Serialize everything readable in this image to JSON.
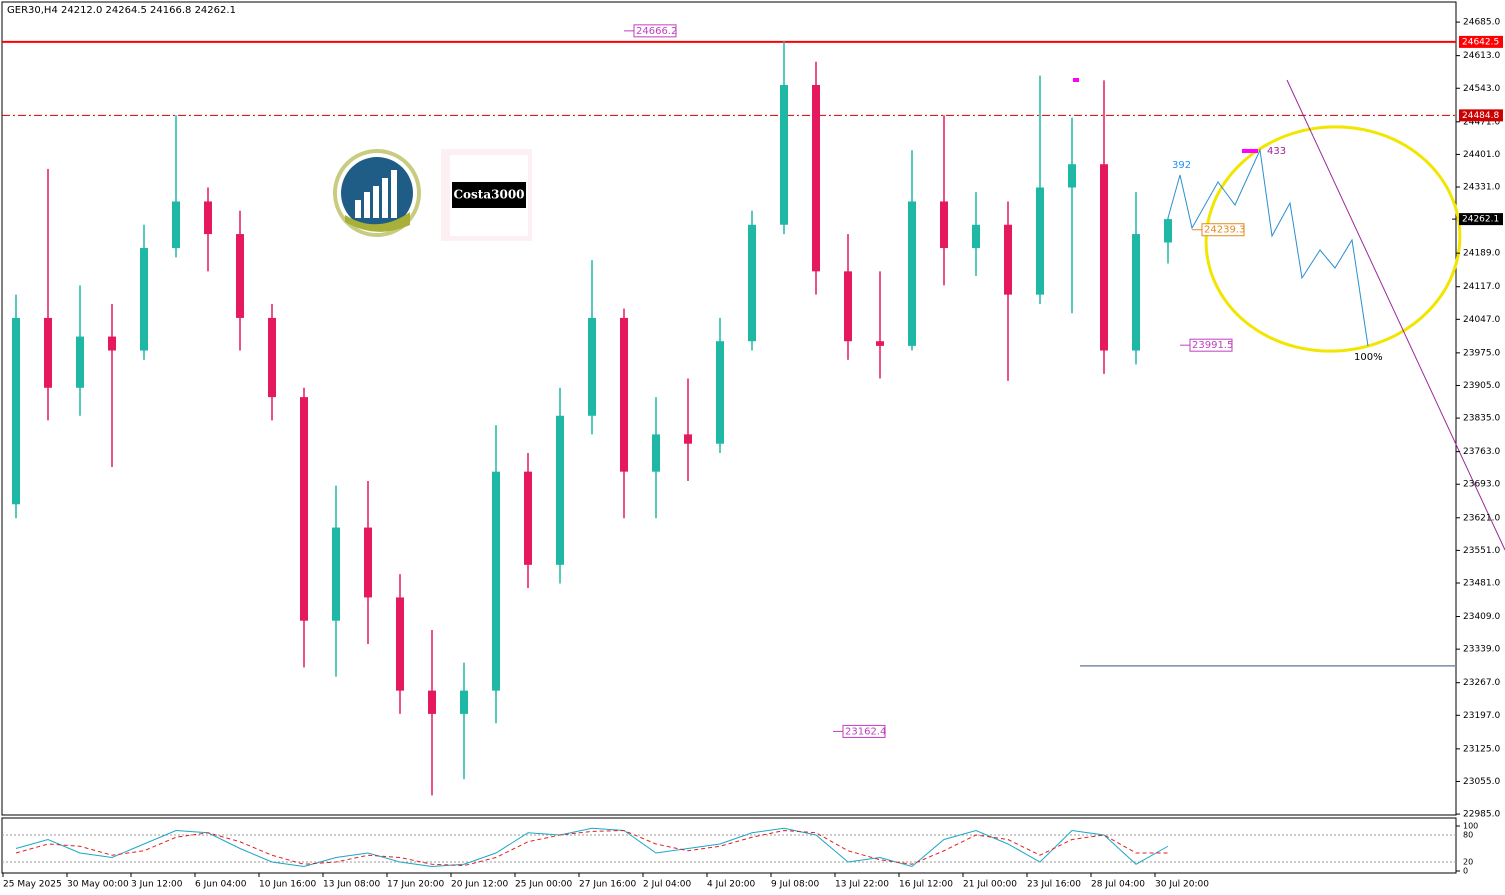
{
  "chart_data": {
    "type": "candlestick",
    "title": "GER30,H4  24212.0 24264.5 24166.8 24262.1",
    "categories": [
      "25 May 2025",
      null,
      "30 May 00:00",
      null,
      "3 Jun 12:00",
      null,
      "6 Jun 04:00",
      null,
      "10 Jun 16:00",
      null,
      "13 Jun 08:00",
      null,
      "17 Jun 20:00",
      null,
      "20 Jun 12:00",
      null,
      "25 Jun 00:00",
      null,
      "27 Jun 16:00",
      null,
      "2 Jul 04:00",
      null,
      "4 Jul 20:00",
      null,
      "9 Jul 08:00",
      null,
      "13 Jul 22:00",
      null,
      "16 Jul 12:00",
      null,
      "21 Jul 00:00",
      null,
      "23 Jul 16:00",
      null,
      "28 Jul 04:00",
      null,
      "30 Jul 20:00"
    ],
    "open": [
      23650,
      24050,
      23900,
      24010,
      23980,
      24200,
      24300,
      24230,
      24050,
      23880,
      23400,
      23600,
      23450,
      23250,
      23200,
      23250,
      23720,
      23520,
      23840,
      24050,
      23720,
      23800,
      23780,
      24000,
      24250,
      24550,
      24150,
      24000,
      23990,
      24300,
      24200,
      24250,
      24100,
      24330,
      24380,
      23980,
      24212.0
    ],
    "high": [
      24100,
      24370,
      24120,
      24080,
      24250,
      24485,
      24330,
      24280,
      24080,
      23900,
      23690,
      23700,
      23500,
      23380,
      23310,
      23820,
      23760,
      23900,
      24174,
      24070,
      23880,
      23920,
      24050,
      24280,
      24645,
      24600,
      24230,
      24150,
      24410,
      24485,
      24320,
      24300,
      24570,
      24480,
      24560,
      24320,
      24264.5
    ],
    "low": [
      23620,
      23830,
      23840,
      23730,
      23960,
      24180,
      24150,
      23980,
      23830,
      23300,
      23280,
      23350,
      23200,
      23025,
      23060,
      23180,
      23470,
      23480,
      23800,
      23620,
      23620,
      23700,
      23760,
      23980,
      24230,
      24100,
      23960,
      23920,
      23980,
      24120,
      24140,
      23915,
      24080,
      24060,
      23930,
      23950,
      24166.8
    ],
    "close": [
      24050,
      23900,
      24010,
      23980,
      24200,
      24300,
      24230,
      24050,
      23880,
      23400,
      23600,
      23450,
      23250,
      23200,
      23250,
      23720,
      23520,
      23840,
      24050,
      23720,
      23800,
      23780,
      24000,
      24250,
      24550,
      24150,
      24000,
      23990,
      24300,
      24200,
      24250,
      24100,
      24330,
      24380,
      23980,
      24230,
      24262.1
    ],
    "up_color": "#1fb8a5",
    "down_color": "#e5195d",
    "ylim": [
      22983,
      24726
    ],
    "yticks": [
      {
        "value": 24685,
        "label": "24685.0"
      },
      {
        "value": 24613,
        "label": "24613.0"
      },
      {
        "value": 24543,
        "label": "24543.0"
      },
      {
        "value": 24471,
        "label": "24471.0"
      },
      {
        "value": 24401,
        "label": "24401.0"
      },
      {
        "value": 24331,
        "label": "24331.0"
      },
      {
        "value": 24189,
        "label": "24189.0"
      },
      {
        "value": 24117,
        "label": "24117.0"
      },
      {
        "value": 24047,
        "label": "24047.0"
      },
      {
        "value": 23975,
        "label": "23975.0"
      },
      {
        "value": 23905,
        "label": "23905.0"
      },
      {
        "value": 23835,
        "label": "23835.0"
      },
      {
        "value": 23763,
        "label": "23763.0"
      },
      {
        "value": 23693,
        "label": "23693.0"
      },
      {
        "value": 23621,
        "label": "23621.0"
      },
      {
        "value": 23551,
        "label": "23551.0"
      },
      {
        "value": 23481,
        "label": "23481.0"
      },
      {
        "value": 23409,
        "label": "23409.0"
      },
      {
        "value": 23339,
        "label": "23339.0"
      },
      {
        "value": 23267,
        "label": "23267.0"
      },
      {
        "value": 23197,
        "label": "23197.0"
      },
      {
        "value": 23125,
        "label": "23125.0"
      },
      {
        "value": 23055,
        "label": "23055.0"
      },
      {
        "value": 22985,
        "label": "22985.0"
      }
    ],
    "levels": [
      {
        "value": 24642.5,
        "color": "#ff0000",
        "style": "solid"
      },
      {
        "value": 24484.8,
        "color": "#cc0000",
        "style": "dashdot"
      }
    ],
    "support_line": {
      "value": 23303,
      "color": "#7a8ca0"
    },
    "current_price": 24262.1,
    "price_annotations": [
      {
        "value": 24666.2,
        "color": "#c040c0"
      },
      {
        "value": 24239.3,
        "color": "#e08a20"
      },
      {
        "value": 23991.5,
        "color": "#c040c0"
      },
      {
        "value": 23162.4,
        "color": "#c040c0"
      }
    ],
    "text_annotations": [
      {
        "label": "392",
        "color": "#1e90ff"
      },
      {
        "label": "433",
        "color": "#a020a0"
      },
      {
        "label": "100%",
        "color": "#000000"
      }
    ],
    "logo_text": "Costa3000",
    "oscillator": {
      "ylim": [
        0,
        100
      ],
      "yticks": [
        100,
        80,
        20,
        0
      ],
      "series": [
        {
          "color": "#1aa8c8",
          "style": "solid",
          "values": [
            50,
            70,
            40,
            30,
            60,
            90,
            85,
            50,
            20,
            10,
            30,
            40,
            20,
            10,
            15,
            40,
            85,
            80,
            95,
            90,
            40,
            50,
            60,
            85,
            95,
            80,
            20,
            30,
            10,
            70,
            90,
            60,
            20,
            90,
            80,
            15,
            55
          ]
        },
        {
          "color": "#e02020",
          "style": "dashed",
          "values": [
            40,
            60,
            55,
            35,
            45,
            75,
            85,
            65,
            35,
            15,
            20,
            35,
            30,
            15,
            12,
            30,
            65,
            80,
            88,
            90,
            60,
            45,
            55,
            75,
            90,
            85,
            45,
            25,
            15,
            45,
            80,
            70,
            35,
            70,
            80,
            40,
            40
          ]
        }
      ]
    }
  }
}
